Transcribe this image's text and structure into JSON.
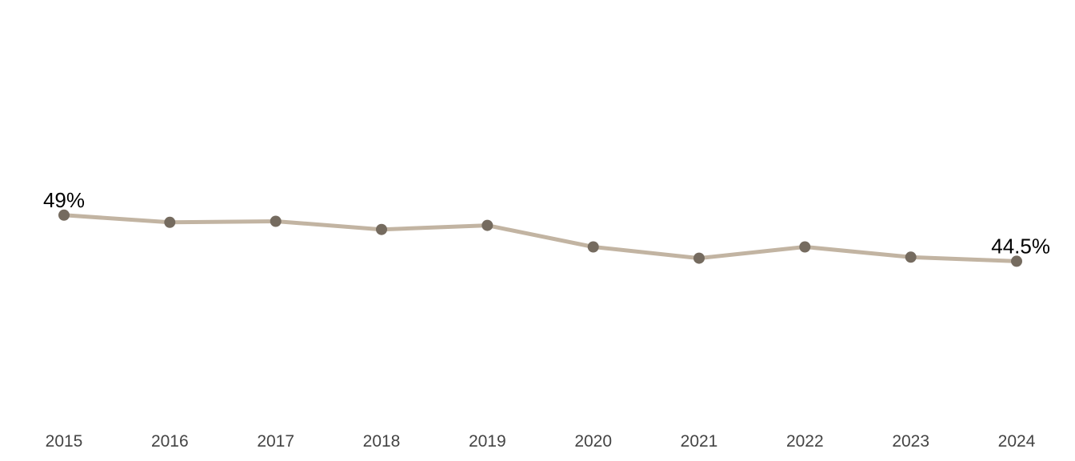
{
  "chart_data": {
    "type": "line",
    "x": [
      "2015",
      "2016",
      "2017",
      "2018",
      "2019",
      "2020",
      "2021",
      "2022",
      "2023",
      "2024"
    ],
    "series": [
      {
        "values": [
          49.0,
          48.3,
          48.4,
          47.6,
          48.0,
          45.9,
          44.8,
          45.9,
          44.9,
          44.5
        ]
      }
    ],
    "data_labels": [
      {
        "index": 0,
        "text": "49%"
      },
      {
        "index": 9,
        "text": "44.5%"
      }
    ],
    "ylim": [
      25,
      70
    ],
    "y_axis_visible": false,
    "grid": false,
    "colors": {
      "line": "#c2b4a2",
      "marker": "#756b5f",
      "tick_text": "#444444",
      "label_text": "#000000"
    }
  }
}
